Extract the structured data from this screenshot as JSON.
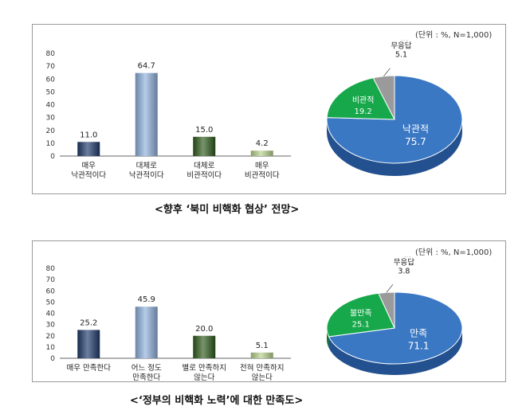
{
  "charts": [
    {
      "unit_note": "(단위 : %, N=1,000)",
      "caption": "<향후 ‘북미 비핵화 협상’ 전망>",
      "bar": {
        "type": "bar",
        "categories": [
          [
            "매우",
            "낙관적이다"
          ],
          [
            "대체로",
            "낙관적이다"
          ],
          [
            "대체로",
            "비관적이다"
          ],
          [
            "매우",
            "비관적이다"
          ]
        ],
        "values": [
          11.0,
          64.7,
          15.0,
          4.2
        ],
        "value_labels": [
          "11.0",
          "64.7",
          "15.0",
          "4.2"
        ],
        "ylim": [
          0,
          80
        ],
        "yticks": [
          "0",
          "10",
          "20",
          "30",
          "40",
          "50",
          "60",
          "70",
          "80"
        ],
        "colors": [
          "#1f3a6b",
          "#8fb0dc",
          "#2e5a1c",
          "#b7d38b"
        ]
      },
      "pie": {
        "type": "pie",
        "slices": [
          {
            "label": "낙관적",
            "value": 75.7,
            "value_label": "75.7",
            "color": "#3b78c4",
            "side": "#23508e"
          },
          {
            "label": "비관적",
            "value": 19.2,
            "value_label": "19.2",
            "color": "#16a84a",
            "side": "#0e7333"
          },
          {
            "label": [
              "모름/",
              "무응답"
            ],
            "value": 5.1,
            "value_label": "5.1",
            "color": "#9a9a9a",
            "side": "#6c6c6c"
          }
        ]
      }
    },
    {
      "unit_note": "(단위 : %, N=1,000)",
      "caption": "<‘정부의 비핵화 노력’에 대한 만족도>",
      "bar": {
        "type": "bar",
        "categories": [
          [
            "매우 만족한다"
          ],
          [
            "어느 정도",
            "만족한다"
          ],
          [
            "별로 만족하지",
            "않는다"
          ],
          [
            "전혀 만족하지",
            "않는다"
          ]
        ],
        "values": [
          25.2,
          45.9,
          20.0,
          5.1
        ],
        "value_labels": [
          "25.2",
          "45.9",
          "20.0",
          "5.1"
        ],
        "ylim": [
          0,
          80
        ],
        "yticks": [
          "0",
          "10",
          "20",
          "30",
          "40",
          "50",
          "60",
          "70",
          "80"
        ],
        "colors": [
          "#1f3a6b",
          "#8fb0dc",
          "#2e5a1c",
          "#b7d38b"
        ]
      },
      "pie": {
        "type": "pie",
        "slices": [
          {
            "label": "만족",
            "value": 71.1,
            "value_label": "71.1",
            "color": "#3b78c4",
            "side": "#23508e"
          },
          {
            "label": "불만족",
            "value": 25.1,
            "value_label": "25.1",
            "color": "#16a84a",
            "side": "#0e7333"
          },
          {
            "label": [
              "모름/",
              "무응답"
            ],
            "value": 3.8,
            "value_label": "3.8",
            "color": "#9a9a9a",
            "side": "#6c6c6c"
          }
        ]
      }
    }
  ]
}
